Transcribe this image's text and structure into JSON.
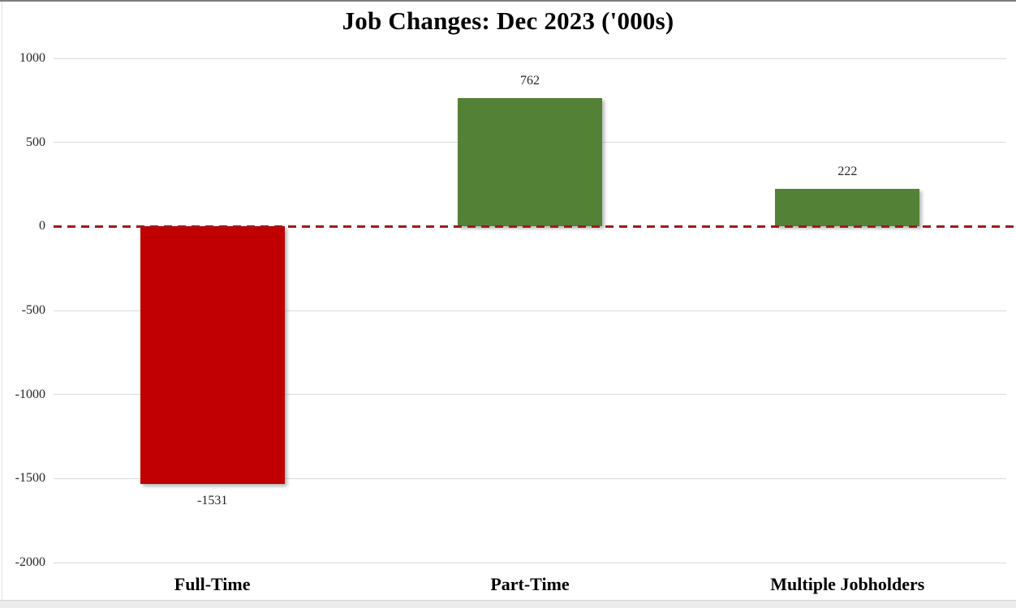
{
  "chart_data": {
    "type": "bar",
    "title": "Job Changes: Dec 2023 ('000s)",
    "categories": [
      "Full-Time",
      "Part-Time",
      "Multiple Jobholders"
    ],
    "values": [
      -1531,
      762,
      222
    ],
    "value_labels": [
      "-1531",
      "762",
      "222"
    ],
    "bar_colors": [
      "#c00000",
      "#538135",
      "#538135"
    ],
    "y_ticks": [
      "1000",
      "500",
      "0",
      "-500",
      "-1000",
      "-1500",
      "-2000"
    ],
    "y_tick_values": [
      1000,
      500,
      0,
      -500,
      -1000,
      -1500,
      -2000
    ],
    "ylim": [
      -2000,
      1000
    ],
    "xlabel": "",
    "ylabel": "",
    "grid": "horizontal",
    "gridline_color": "#d9d9d9",
    "zero_line": {
      "style": "dashed",
      "color": "#9c1b1e"
    },
    "legend": "none"
  },
  "colors": {
    "negative_bar": "#c00000",
    "positive_bar": "#538135",
    "baseline_dash": "#9c1b1e",
    "background": "#ffffff"
  }
}
